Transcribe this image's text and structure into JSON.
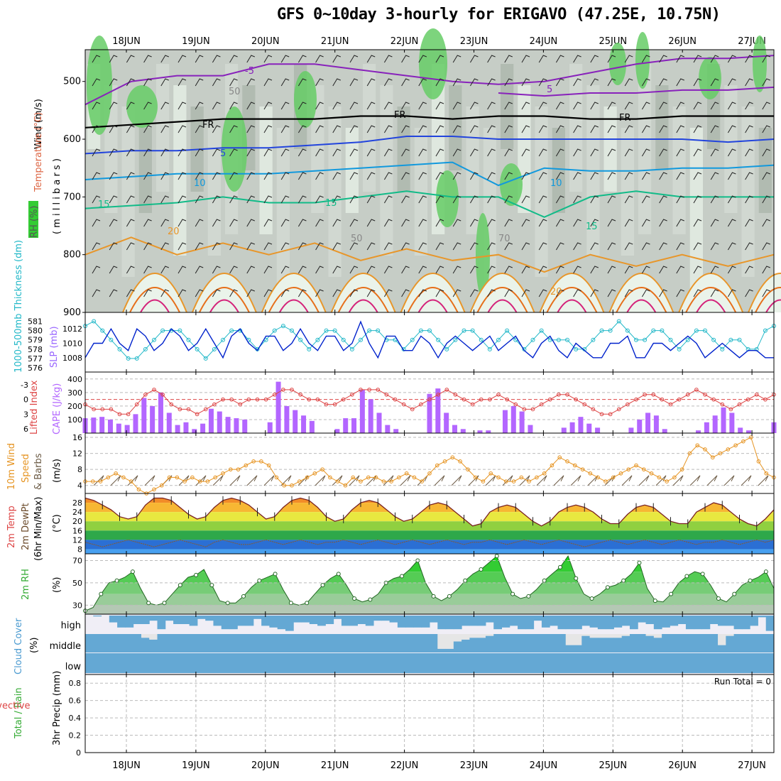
{
  "title": "GFS 0~10day 3-hourly for ERIGAVO (47.25E, 10.75N)",
  "run_total": "Run Total = 0",
  "colors": {
    "rh_green": "#33cc33",
    "bar_purple": "#b366ff",
    "slp_blue": "#0022cc",
    "thick_cyan": "#22b8c8",
    "li_red": "#dd4444",
    "wind_orange": "#e69422",
    "cloud_blue": "#64a8d4"
  },
  "chart_data": [
    {
      "id": "upper_air",
      "type": "heatmap",
      "description_labels": {
        "rh": "RH (%)",
        "temperature": "Temperature (°C)",
        "wind": "Wind (m/s)",
        "ylabel": "( m i l l i b a r s )"
      },
      "x_ticks": [
        "18JUN",
        "19JUN",
        "20JUN",
        "21JUN",
        "22JUN",
        "23JUN",
        "24JUN",
        "25JUN",
        "26JUN",
        "27JUN"
      ],
      "y_ticks": [
        500,
        600,
        700,
        800,
        900
      ],
      "ylim": [
        900,
        445
      ],
      "contour_labels": [
        "-5",
        "5",
        "FR",
        "FR",
        "FR",
        "5",
        "10",
        "10",
        "15",
        "15",
        "15",
        "20",
        "20",
        "50",
        "50",
        "70"
      ],
      "isotherms": [
        {
          "name": "-5",
          "color": "#8822bb",
          "values": [
            540,
            500,
            490,
            490,
            470,
            470,
            480,
            490,
            500,
            505,
            500,
            485,
            470,
            460,
            460,
            455
          ]
        },
        {
          "name": "-5b",
          "color": "#8822bb",
          "values": [
            0,
            0,
            0,
            0,
            0,
            0,
            0,
            0,
            0,
            520,
            525,
            520,
            520,
            515,
            515,
            510
          ]
        },
        {
          "name": "FR",
          "color": "#000000",
          "values": [
            580,
            575,
            570,
            565,
            565,
            565,
            560,
            560,
            565,
            560,
            560,
            565,
            565,
            560,
            560,
            560
          ]
        },
        {
          "name": "5",
          "color": "#2244dd",
          "values": [
            625,
            620,
            620,
            615,
            615,
            610,
            605,
            595,
            595,
            600,
            600,
            600,
            600,
            600,
            605,
            600
          ]
        },
        {
          "name": "10",
          "color": "#1199dd",
          "values": [
            670,
            665,
            660,
            660,
            660,
            655,
            650,
            645,
            640,
            680,
            650,
            655,
            655,
            650,
            650,
            645
          ]
        },
        {
          "name": "15",
          "color": "#11bb88",
          "values": [
            720,
            715,
            710,
            700,
            710,
            710,
            700,
            690,
            700,
            700,
            735,
            700,
            690,
            700,
            700,
            700
          ]
        },
        {
          "name": "20",
          "color": "#e8962a",
          "values": [
            800,
            770,
            800,
            780,
            800,
            780,
            810,
            790,
            810,
            800,
            830,
            800,
            820,
            800,
            820,
            800
          ]
        }
      ]
    },
    {
      "id": "slp_thickness",
      "type": "line",
      "ylabel_left": "1000-500mb Thickness (dm)",
      "ylabel_right": "SLP (mb)",
      "thickness_ticks": [
        576,
        577,
        578,
        579,
        580,
        581
      ],
      "slp_ticks": [
        1008,
        1010,
        1012
      ],
      "series": [
        {
          "name": "SLP (mb)",
          "values": [
            1008,
            1010,
            1010,
            1012,
            1010,
            1009,
            1012,
            1011,
            1009,
            1010,
            1012,
            1011,
            1009,
            1010,
            1012,
            1010,
            1008,
            1011,
            1012,
            1010,
            1009,
            1011,
            1011,
            1009,
            1010,
            1012,
            1010,
            1009,
            1011,
            1011,
            1009,
            1010,
            1013,
            1010,
            1008,
            1011,
            1011,
            1009,
            1009,
            1011,
            1010,
            1008,
            1010,
            1011,
            1010,
            1009,
            1010,
            1011,
            1009,
            1010,
            1011,
            1009,
            1008,
            1010,
            1011,
            1009,
            1008,
            1010,
            1009,
            1008,
            1008,
            1010,
            1010,
            1011,
            1008,
            1008,
            1010,
            1010,
            1009,
            1010,
            1011,
            1010,
            1008,
            1009,
            1010,
            1009,
            1008,
            1009,
            1009,
            1008,
            1008
          ]
        },
        {
          "name": "Thickness",
          "values": [
            580.5,
            581,
            580,
            579,
            578,
            577,
            577,
            578,
            579,
            580,
            580,
            580,
            579,
            578,
            577,
            578,
            579,
            580,
            580,
            579,
            578,
            579,
            580,
            580.5,
            580,
            579,
            578,
            579,
            580,
            580,
            579,
            578,
            579,
            580,
            580,
            579,
            579,
            578,
            579,
            580,
            580,
            579,
            578,
            579,
            580,
            580,
            579,
            578,
            579,
            580,
            579,
            578,
            579,
            580,
            579,
            579,
            579,
            578,
            578,
            579,
            580,
            580,
            581,
            580,
            579,
            579,
            580,
            580,
            579,
            578,
            579,
            580,
            580,
            579,
            578,
            579,
            579,
            578,
            578,
            580,
            580.5
          ]
        }
      ]
    },
    {
      "id": "cape_li",
      "type": "bar",
      "ylabel_left": "Lifted Index",
      "ylabel_right": "CAPE (J/kg)",
      "li_ticks": [
        "-3",
        "0",
        "3",
        "6"
      ],
      "cape_ticks": [
        100,
        200,
        300,
        400
      ],
      "series": [
        {
          "name": "CAPE (J/kg)",
          "values": [
            110,
            115,
            120,
            100,
            70,
            60,
            140,
            260,
            200,
            300,
            150,
            60,
            80,
            30,
            70,
            180,
            160,
            120,
            110,
            100,
            0,
            0,
            80,
            380,
            200,
            170,
            130,
            90,
            0,
            0,
            30,
            110,
            110,
            320,
            250,
            150,
            60,
            30,
            0,
            0,
            0,
            290,
            330,
            150,
            60,
            30,
            0,
            20,
            20,
            0,
            170,
            200,
            160,
            60,
            0,
            0,
            0,
            40,
            80,
            120,
            70,
            40,
            0,
            0,
            0,
            40,
            100,
            150,
            130,
            30,
            0,
            0,
            0,
            20,
            80,
            130,
            190,
            150,
            40,
            20,
            0,
            0,
            80
          ]
        },
        {
          "name": "Lifted Index",
          "values": [
            1,
            2,
            2,
            2,
            3,
            3,
            1,
            -1,
            -2,
            -1,
            1,
            2,
            2,
            3,
            2,
            1,
            0,
            0,
            1,
            0,
            0,
            0,
            -1,
            -2,
            -2,
            -1,
            0,
            0,
            1,
            1,
            0,
            -1,
            -2,
            -2,
            -2,
            -1,
            0,
            1,
            2,
            1,
            0,
            -1,
            -2,
            -1,
            0,
            1,
            0,
            0,
            -1,
            0,
            1,
            2,
            2,
            1,
            0,
            -1,
            -1,
            0,
            1,
            2,
            3,
            3,
            2,
            1,
            0,
            -1,
            -1,
            0,
            1,
            0,
            -1,
            -2,
            -1,
            0,
            1,
            2,
            1,
            0,
            -1,
            0,
            -1
          ]
        }
      ]
    },
    {
      "id": "wind10m",
      "type": "line",
      "ylabel": "10m Wind Speed & Barbs (m/s)",
      "yticks": [
        4,
        8,
        12,
        16
      ],
      "ylim": [
        2,
        16
      ],
      "series": [
        {
          "name": "10m Wind",
          "values": [
            5,
            5,
            5,
            6,
            7,
            6,
            5,
            3,
            2,
            3,
            4,
            6,
            6,
            5,
            6,
            5,
            5,
            6,
            7,
            8,
            8,
            9,
            10,
            10,
            9,
            6,
            4,
            4,
            5,
            6,
            7,
            8,
            6,
            5,
            4,
            6,
            5,
            6,
            6,
            5,
            5,
            6,
            7,
            6,
            5,
            7,
            9,
            10,
            11,
            10,
            8,
            6,
            5,
            7,
            6,
            5,
            5,
            6,
            5,
            6,
            7,
            9,
            11,
            10,
            9,
            8,
            7,
            6,
            5,
            6,
            7,
            8,
            9,
            8,
            7,
            6,
            5,
            6,
            8,
            12,
            14,
            13,
            11,
            12,
            13,
            14,
            15,
            16,
            10,
            7,
            6
          ]
        }
      ]
    },
    {
      "id": "temp2m",
      "type": "area",
      "ylabel": "2m Temp 2m DewPt (6hr Min/Max) (°C)",
      "yticks": [
        8,
        12,
        16,
        20,
        24,
        28
      ],
      "ylim": [
        6,
        32
      ],
      "series": [
        {
          "name": "2m Temp",
          "values": [
            30,
            29,
            27,
            25,
            22,
            21,
            22,
            27,
            30,
            30,
            29,
            26,
            23,
            21,
            22,
            26,
            29,
            30,
            29,
            27,
            24,
            21,
            22,
            26,
            29,
            30,
            29,
            26,
            22,
            20,
            21,
            25,
            28,
            29,
            28,
            25,
            22,
            20,
            21,
            24,
            27,
            28,
            27,
            24,
            21,
            18,
            19,
            24,
            26,
            27,
            26,
            23,
            20,
            18,
            20,
            24,
            26,
            27,
            26,
            24,
            21,
            19,
            19,
            23,
            26,
            27,
            26,
            23,
            20,
            19,
            19,
            24,
            26,
            28,
            27,
            24,
            21,
            19,
            18,
            21,
            25
          ]
        },
        {
          "name": "2m DewPt",
          "values": [
            11,
            10,
            9,
            10,
            11,
            12,
            11,
            10,
            9,
            10,
            11,
            12,
            11,
            10,
            9,
            11,
            12,
            11,
            10,
            10,
            11,
            12,
            11,
            10,
            11,
            12,
            11,
            10,
            11,
            11,
            12,
            11,
            10,
            11,
            12,
            11,
            10,
            11,
            12,
            11,
            10,
            11,
            12,
            11,
            10,
            11,
            11,
            12,
            11,
            10,
            11,
            12,
            11,
            10,
            11,
            12,
            11,
            10,
            9,
            10,
            11,
            12,
            11,
            10,
            11,
            12,
            11,
            10,
            11,
            12,
            11,
            10,
            11,
            11,
            12,
            11,
            10,
            11,
            12,
            11,
            12
          ]
        }
      ]
    },
    {
      "id": "rh2m",
      "type": "area",
      "ylabel": "2m RH (%)",
      "yticks": [
        30,
        50,
        70
      ],
      "ylim": [
        22,
        76
      ],
      "series": [
        {
          "name": "2m RH",
          "values": [
            25,
            28,
            40,
            50,
            52,
            55,
            60,
            45,
            32,
            30,
            32,
            40,
            48,
            55,
            57,
            62,
            48,
            34,
            32,
            32,
            38,
            46,
            52,
            55,
            58,
            44,
            32,
            30,
            32,
            40,
            48,
            54,
            58,
            48,
            36,
            33,
            35,
            40,
            50,
            54,
            56,
            62,
            70,
            50,
            38,
            34,
            38,
            44,
            52,
            58,
            62,
            68,
            74,
            55,
            40,
            36,
            38,
            44,
            52,
            58,
            64,
            74,
            54,
            40,
            36,
            40,
            46,
            48,
            52,
            58,
            68,
            45,
            34,
            33,
            40,
            50,
            56,
            60,
            58,
            48,
            36,
            33,
            40,
            48,
            52,
            55,
            60,
            45
          ]
        }
      ]
    },
    {
      "id": "cloud",
      "type": "bar",
      "ylabel": "Cloud Cover (%)",
      "levels": [
        "high",
        "middle",
        "low"
      ],
      "high": [
        0.0,
        0.05,
        0.0,
        0.4,
        0.7,
        0.7,
        0.5,
        0.5,
        0.3,
        0.8,
        0.3,
        0.5,
        0.5,
        0.6,
        0.2,
        0.3,
        0.6,
        0.8,
        0.8,
        0.6,
        0.6,
        0.2,
        0.6,
        0.7,
        0.8,
        0.9,
        0.4,
        0.4,
        0.5,
        0.6,
        0.5,
        0.2,
        0.6,
        0.6,
        0.5,
        0.6,
        0.3,
        0.3,
        0.4,
        0.7,
        0.7,
        0.7,
        0.7,
        0.4,
        0.8,
        0.8,
        0.8,
        0.6,
        0.6,
        0.6,
        0.4,
        0.8,
        0.7,
        0.6,
        0.8,
        0.8,
        0.3,
        0.7,
        0.6,
        0.8,
        0.8,
        0.8,
        0.6,
        0.7,
        0.8,
        0.8,
        0.7,
        0.6,
        0.8,
        0.4,
        0.5,
        0.8,
        0.7,
        0.6,
        0.5,
        0.8,
        0.8,
        0.8,
        0.5,
        0.6,
        0.6,
        0.8,
        0.8,
        0.6,
        0.1,
        0.9
      ],
      "middle": [
        1,
        1,
        1,
        1,
        1,
        1,
        1,
        0.8,
        0.7,
        1,
        1,
        1,
        1,
        1,
        1,
        1,
        1,
        1,
        1,
        1,
        1,
        1,
        1,
        1,
        1,
        1,
        1,
        1,
        1,
        1,
        1,
        1,
        1,
        1,
        1,
        1,
        1,
        1,
        1,
        1,
        1,
        1,
        1,
        1,
        0.2,
        0.2,
        0.6,
        0.7,
        0.8,
        0.8,
        0.9,
        1,
        1,
        1,
        1,
        1,
        1,
        1,
        1,
        1,
        0.4,
        0.4,
        0.9,
        0.8,
        0.8,
        0.8,
        0.8,
        0.9,
        1,
        1,
        0.9,
        0.8,
        1,
        1,
        1,
        1,
        1,
        1,
        1,
        0.4,
        0.9,
        1,
        1,
        1,
        1,
        1,
        0.3,
        1
      ]
    },
    {
      "id": "precip",
      "type": "bar",
      "ylabel_left": "Total / Rain",
      "ylabel_left2": "Convective",
      "ylabel": "3hr Precip (mm)",
      "yticks": [
        "0",
        "0.2",
        "0.4",
        "0.6",
        "0.8"
      ],
      "ylim": [
        0,
        0.9
      ],
      "values": []
    }
  ]
}
